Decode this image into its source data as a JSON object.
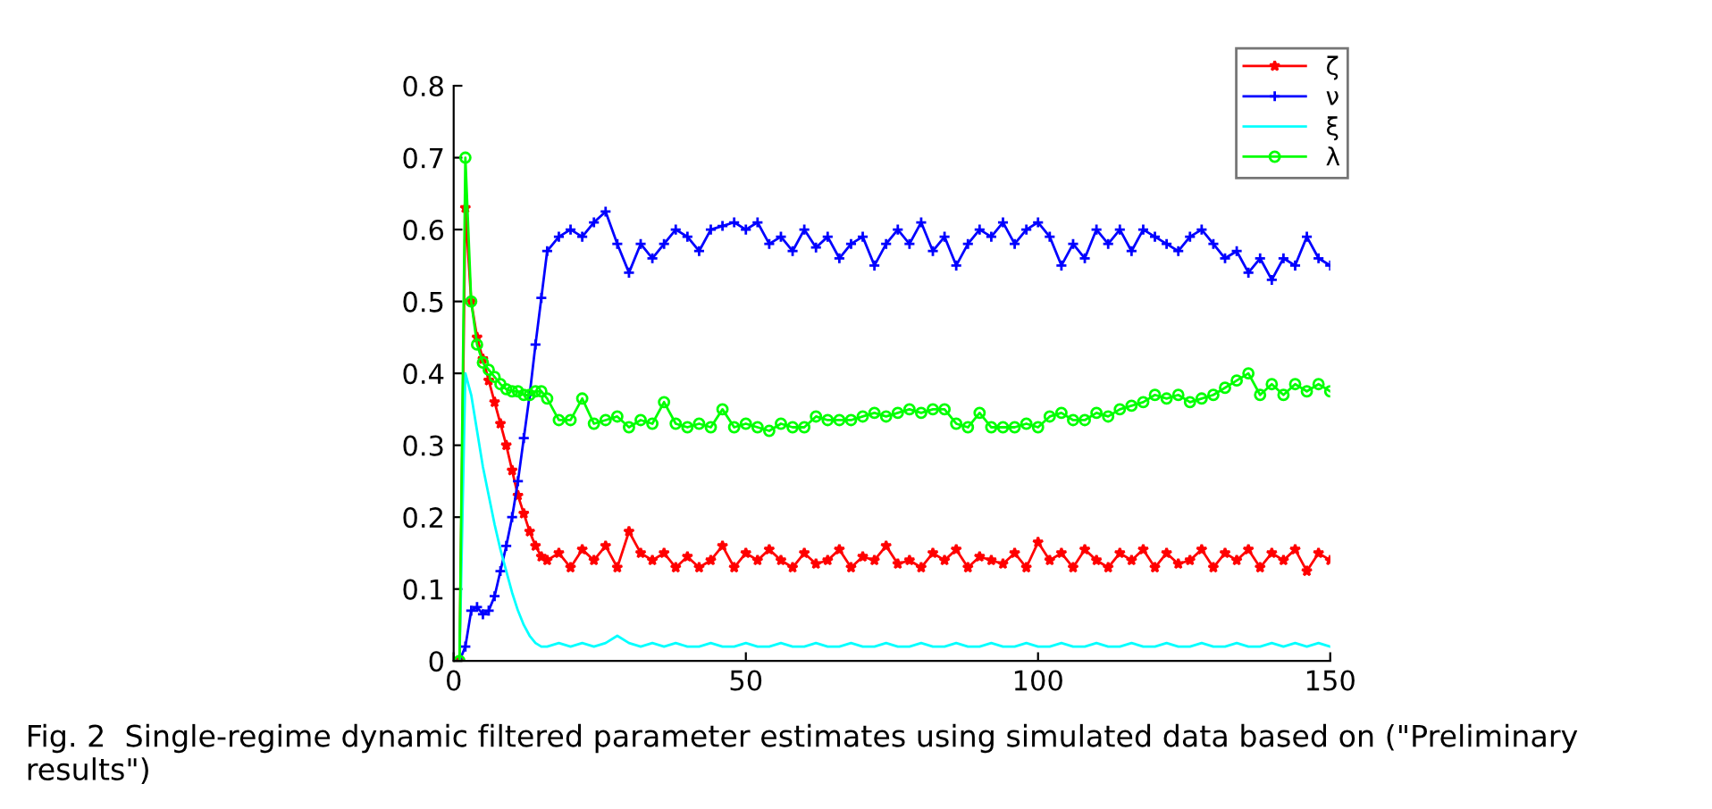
{
  "chart_data": {
    "type": "line",
    "x": [
      1,
      2,
      3,
      4,
      5,
      6,
      7,
      8,
      9,
      10,
      11,
      12,
      13,
      14,
      15,
      16,
      18,
      20,
      22,
      24,
      26,
      28,
      30,
      32,
      34,
      36,
      38,
      40,
      42,
      44,
      46,
      48,
      50,
      52,
      54,
      56,
      58,
      60,
      62,
      64,
      66,
      68,
      70,
      72,
      74,
      76,
      78,
      80,
      82,
      84,
      86,
      88,
      90,
      92,
      94,
      96,
      98,
      100,
      102,
      104,
      106,
      108,
      110,
      112,
      114,
      116,
      118,
      120,
      122,
      124,
      126,
      128,
      130,
      132,
      134,
      136,
      138,
      140,
      142,
      144,
      146,
      148,
      150
    ],
    "series": [
      {
        "name": "ζ",
        "color": "#ff0000",
        "marker": "star",
        "values": [
          0,
          0.63,
          0.5,
          0.45,
          0.42,
          0.39,
          0.36,
          0.33,
          0.3,
          0.265,
          0.23,
          0.205,
          0.18,
          0.16,
          0.145,
          0.14,
          0.15,
          0.13,
          0.155,
          0.14,
          0.16,
          0.13,
          0.18,
          0.15,
          0.14,
          0.15,
          0.13,
          0.145,
          0.13,
          0.14,
          0.16,
          0.13,
          0.15,
          0.14,
          0.155,
          0.14,
          0.13,
          0.15,
          0.135,
          0.14,
          0.155,
          0.13,
          0.145,
          0.14,
          0.16,
          0.135,
          0.14,
          0.13,
          0.15,
          0.14,
          0.155,
          0.13,
          0.145,
          0.14,
          0.135,
          0.15,
          0.13,
          0.165,
          0.14,
          0.15,
          0.13,
          0.155,
          0.14,
          0.13,
          0.15,
          0.14,
          0.155,
          0.13,
          0.15,
          0.135,
          0.14,
          0.155,
          0.13,
          0.15,
          0.14,
          0.155,
          0.13,
          0.15,
          0.14,
          0.155,
          0.125,
          0.15,
          0.14
        ]
      },
      {
        "name": "ν",
        "color": "#0000ff",
        "marker": "cross",
        "values": [
          0,
          0.02,
          0.07,
          0.075,
          0.065,
          0.07,
          0.09,
          0.125,
          0.16,
          0.2,
          0.25,
          0.31,
          0.37,
          0.44,
          0.505,
          0.57,
          0.59,
          0.6,
          0.59,
          0.61,
          0.625,
          0.58,
          0.54,
          0.58,
          0.56,
          0.58,
          0.6,
          0.59,
          0.57,
          0.6,
          0.605,
          0.61,
          0.6,
          0.61,
          0.58,
          0.59,
          0.57,
          0.6,
          0.575,
          0.59,
          0.56,
          0.58,
          0.59,
          0.55,
          0.58,
          0.6,
          0.58,
          0.61,
          0.57,
          0.59,
          0.55,
          0.58,
          0.6,
          0.59,
          0.61,
          0.58,
          0.6,
          0.61,
          0.59,
          0.55,
          0.58,
          0.56,
          0.6,
          0.58,
          0.6,
          0.57,
          0.6,
          0.59,
          0.58,
          0.57,
          0.59,
          0.6,
          0.58,
          0.56,
          0.57,
          0.54,
          0.56,
          0.53,
          0.56,
          0.55,
          0.59,
          0.56,
          0.55
        ]
      },
      {
        "name": "ξ",
        "color": "#00ffff",
        "marker": "none",
        "values": [
          0,
          0.4,
          0.37,
          0.32,
          0.27,
          0.23,
          0.19,
          0.155,
          0.125,
          0.095,
          0.07,
          0.05,
          0.035,
          0.025,
          0.02,
          0.02,
          0.025,
          0.02,
          0.025,
          0.02,
          0.025,
          0.035,
          0.025,
          0.02,
          0.025,
          0.02,
          0.025,
          0.02,
          0.02,
          0.025,
          0.02,
          0.02,
          0.025,
          0.02,
          0.02,
          0.025,
          0.02,
          0.02,
          0.025,
          0.02,
          0.02,
          0.025,
          0.02,
          0.02,
          0.025,
          0.02,
          0.02,
          0.025,
          0.02,
          0.02,
          0.025,
          0.02,
          0.02,
          0.025,
          0.02,
          0.02,
          0.025,
          0.02,
          0.02,
          0.025,
          0.02,
          0.02,
          0.025,
          0.02,
          0.02,
          0.025,
          0.02,
          0.02,
          0.025,
          0.02,
          0.02,
          0.025,
          0.02,
          0.02,
          0.025,
          0.02,
          0.02,
          0.025,
          0.02,
          0.025,
          0.02,
          0.025,
          0.02
        ]
      },
      {
        "name": "λ",
        "color": "#00ff00",
        "marker": "circle",
        "values": [
          0,
          0.7,
          0.5,
          0.44,
          0.415,
          0.405,
          0.395,
          0.385,
          0.378,
          0.375,
          0.375,
          0.37,
          0.37,
          0.375,
          0.375,
          0.365,
          0.335,
          0.335,
          0.365,
          0.33,
          0.335,
          0.34,
          0.325,
          0.335,
          0.33,
          0.36,
          0.33,
          0.325,
          0.33,
          0.325,
          0.35,
          0.325,
          0.33,
          0.325,
          0.32,
          0.33,
          0.325,
          0.325,
          0.34,
          0.335,
          0.335,
          0.335,
          0.34,
          0.345,
          0.34,
          0.345,
          0.35,
          0.345,
          0.35,
          0.35,
          0.33,
          0.325,
          0.345,
          0.325,
          0.325,
          0.325,
          0.33,
          0.325,
          0.34,
          0.345,
          0.335,
          0.335,
          0.345,
          0.34,
          0.35,
          0.355,
          0.36,
          0.37,
          0.365,
          0.37,
          0.36,
          0.365,
          0.37,
          0.38,
          0.39,
          0.4,
          0.37,
          0.385,
          0.37,
          0.385,
          0.375,
          0.385,
          0.375
        ]
      }
    ],
    "xlim": [
      0,
      150
    ],
    "xticks": [
      0,
      50,
      100,
      150
    ],
    "ylim": [
      0,
      0.8
    ],
    "yticks": [
      0,
      0.1,
      0.2,
      0.3,
      0.4,
      0.5,
      0.6,
      0.7,
      0.8
    ],
    "grid": false,
    "legend": "top right",
    "line_style": "solid",
    "annotations": [
      "Fig. 2  Single-regime dynamic filtered parameter estimates using simulated data based on (\"Preliminary results\")"
    ]
  }
}
